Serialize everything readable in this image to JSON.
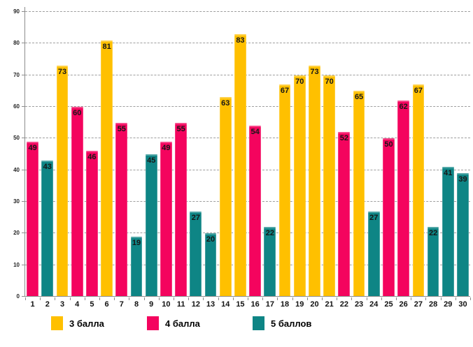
{
  "chart_data": {
    "type": "bar",
    "title": "",
    "xlabel": "",
    "ylabel": "",
    "categories": [
      "1",
      "2",
      "3",
      "4",
      "5",
      "6",
      "7",
      "8",
      "9",
      "10",
      "11",
      "12",
      "13",
      "14",
      "15",
      "16",
      "17",
      "18",
      "19",
      "20",
      "21",
      "22",
      "23",
      "24",
      "25",
      "26",
      "27",
      "28",
      "29",
      "30"
    ],
    "values": [
      49,
      43,
      73,
      60,
      46,
      81,
      55,
      19,
      45,
      49,
      55,
      27,
      20,
      63,
      83,
      54,
      22,
      67,
      70,
      73,
      70,
      52,
      65,
      27,
      50,
      62,
      67,
      22,
      41,
      39
    ],
    "bar_series": [
      1,
      2,
      0,
      1,
      1,
      0,
      1,
      2,
      2,
      1,
      1,
      2,
      2,
      0,
      0,
      1,
      2,
      0,
      0,
      0,
      0,
      1,
      0,
      2,
      1,
      1,
      0,
      2,
      2,
      2
    ],
    "series": [
      {
        "name": "3 балла",
        "color": "#FFC000"
      },
      {
        "name": "4 балла",
        "color": "#F4045E"
      },
      {
        "name": "5 баллов",
        "color": "#0E8585"
      }
    ],
    "ylim": [
      0,
      90
    ],
    "yticks": [
      0,
      10,
      20,
      30,
      40,
      50,
      60,
      70,
      80,
      90
    ],
    "grid": "horizontal-dashed",
    "legend_position": "bottom",
    "data_labels": true
  },
  "colors": {
    "gridline": "#9E9E9E",
    "axis": "#8C8C8C",
    "background": "#FFFFFF",
    "label_text": "#161616"
  }
}
